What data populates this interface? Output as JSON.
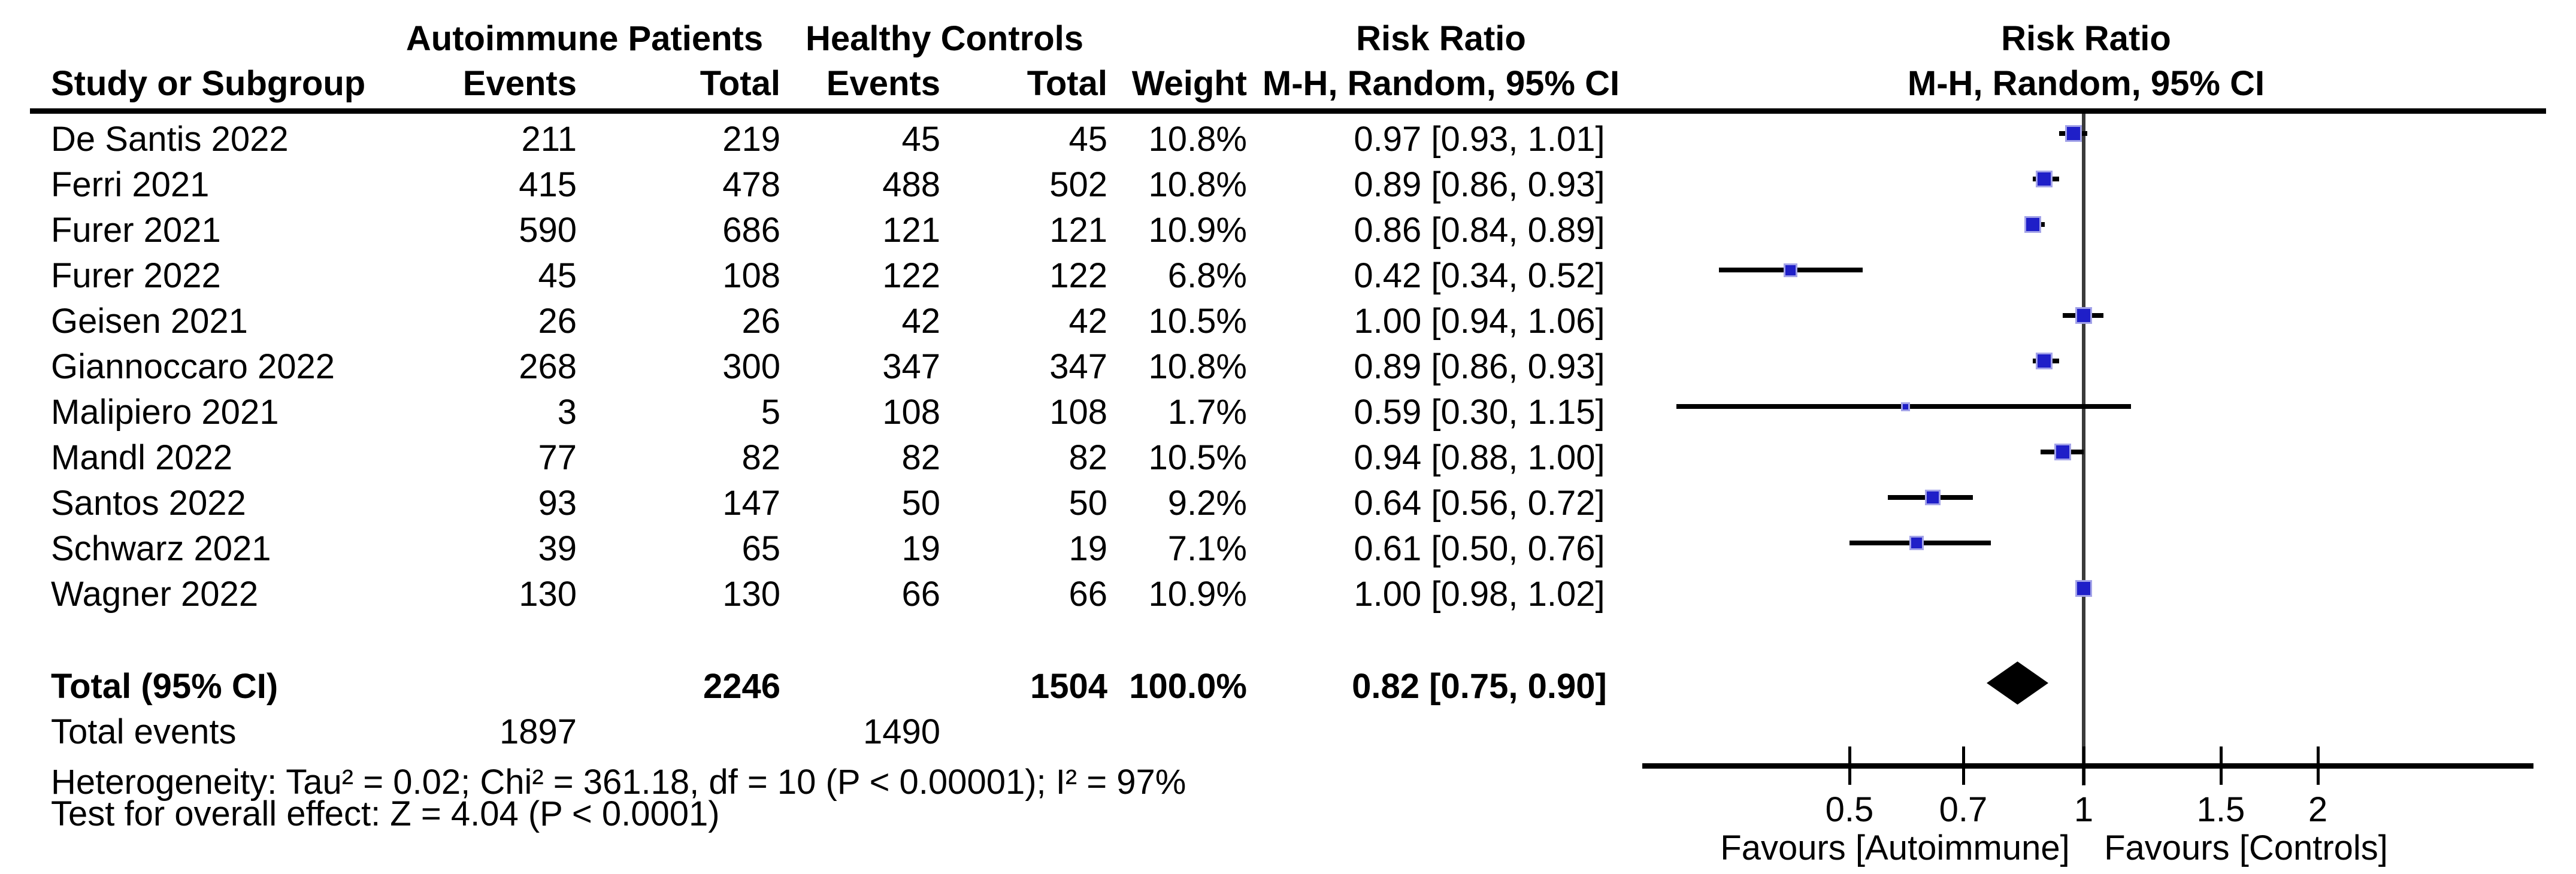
{
  "figure": {
    "columns": {
      "study": "Study or Subgroup",
      "group1": "Autoimmune Patients",
      "group2": "Healthy Controls",
      "events": "Events",
      "total": "Total",
      "weight": "Weight",
      "risk_ratio": "Risk Ratio",
      "method": "M-H, Random, 95% CI"
    }
  },
  "chart_data": {
    "type": "forest",
    "effect_measure": "Risk Ratio",
    "model": "M-H, Random, 95% CI",
    "x_scale": "log",
    "xlim": [
      0.27,
      3.8
    ],
    "axis_ticks": [
      0.5,
      0.7,
      1,
      1.5,
      2
    ],
    "null_value": 1,
    "favours_left": "Favours [Autoimmune]",
    "favours_right": "Favours [Controls]",
    "studies": [
      {
        "name": "De Santis 2022",
        "events_1": "211",
        "total_1": "219",
        "events_2": "45",
        "total_2": "45",
        "weight": "10.8%",
        "ci_text": "0.97 [0.93, 1.01]",
        "rr": 0.97,
        "lo": 0.93,
        "hi": 1.01
      },
      {
        "name": "Ferri 2021",
        "events_1": "415",
        "total_1": "478",
        "events_2": "488",
        "total_2": "502",
        "weight": "10.8%",
        "ci_text": "0.89 [0.86, 0.93]",
        "rr": 0.89,
        "lo": 0.86,
        "hi": 0.93
      },
      {
        "name": "Furer 2021",
        "events_1": "590",
        "total_1": "686",
        "events_2": "121",
        "total_2": "121",
        "weight": "10.9%",
        "ci_text": "0.86 [0.84, 0.89]",
        "rr": 0.86,
        "lo": 0.84,
        "hi": 0.89
      },
      {
        "name": "Furer 2022",
        "events_1": "45",
        "total_1": "108",
        "events_2": "122",
        "total_2": "122",
        "weight": "6.8%",
        "ci_text": "0.42 [0.34, 0.52]",
        "rr": 0.42,
        "lo": 0.34,
        "hi": 0.52
      },
      {
        "name": "Geisen 2021",
        "events_1": "26",
        "total_1": "26",
        "events_2": "42",
        "total_2": "42",
        "weight": "10.5%",
        "ci_text": "1.00 [0.94, 1.06]",
        "rr": 1.0,
        "lo": 0.94,
        "hi": 1.06
      },
      {
        "name": "Giannoccaro 2022",
        "events_1": "268",
        "total_1": "300",
        "events_2": "347",
        "total_2": "347",
        "weight": "10.8%",
        "ci_text": "0.89 [0.86, 0.93]",
        "rr": 0.89,
        "lo": 0.86,
        "hi": 0.93
      },
      {
        "name": "Malipiero 2021",
        "events_1": "3",
        "total_1": "5",
        "events_2": "108",
        "total_2": "108",
        "weight": "1.7%",
        "ci_text": "0.59 [0.30, 1.15]",
        "rr": 0.59,
        "lo": 0.3,
        "hi": 1.15
      },
      {
        "name": "Mandl 2022",
        "events_1": "77",
        "total_1": "82",
        "events_2": "82",
        "total_2": "82",
        "weight": "10.5%",
        "ci_text": "0.94 [0.88, 1.00]",
        "rr": 0.94,
        "lo": 0.88,
        "hi": 1.0
      },
      {
        "name": "Santos 2022",
        "events_1": "93",
        "total_1": "147",
        "events_2": "50",
        "total_2": "50",
        "weight": "9.2%",
        "ci_text": "0.64 [0.56, 0.72]",
        "rr": 0.64,
        "lo": 0.56,
        "hi": 0.72
      },
      {
        "name": "Schwarz 2021",
        "events_1": "39",
        "total_1": "65",
        "events_2": "19",
        "total_2": "19",
        "weight": "7.1%",
        "ci_text": "0.61 [0.50, 0.76]",
        "rr": 0.61,
        "lo": 0.5,
        "hi": 0.76
      },
      {
        "name": "Wagner 2022",
        "events_1": "130",
        "total_1": "130",
        "events_2": "66",
        "total_2": "66",
        "weight": "10.9%",
        "ci_text": "1.00 [0.98, 1.02]",
        "rr": 1.0,
        "lo": 0.98,
        "hi": 1.02
      }
    ],
    "total_row": {
      "label": "Total (95% CI)",
      "total_1": "2246",
      "total_2": "1504",
      "weight": "100.0%",
      "ci_text": "0.82 [0.75, 0.90]",
      "rr": 0.82,
      "lo": 0.75,
      "hi": 0.9
    },
    "total_events_row": {
      "label": "Total events",
      "events_1": "1897",
      "events_2": "1490"
    },
    "heterogeneity": "Heterogeneity: Tau² = 0.02; Chi² = 361.18, df = 10 (P < 0.00001); I² = 97%",
    "overall_effect": "Test for overall effect: Z = 4.04 (P < 0.0001)"
  },
  "colors": {
    "marker_square": "#1f1fc8",
    "marker_halo": "#a3a3e8",
    "ci_line": "#000000",
    "diamond": "#000000",
    "axis": "#000000",
    "null_line": "#3a3a3a",
    "text": "#000000",
    "background": "#ffffff"
  }
}
